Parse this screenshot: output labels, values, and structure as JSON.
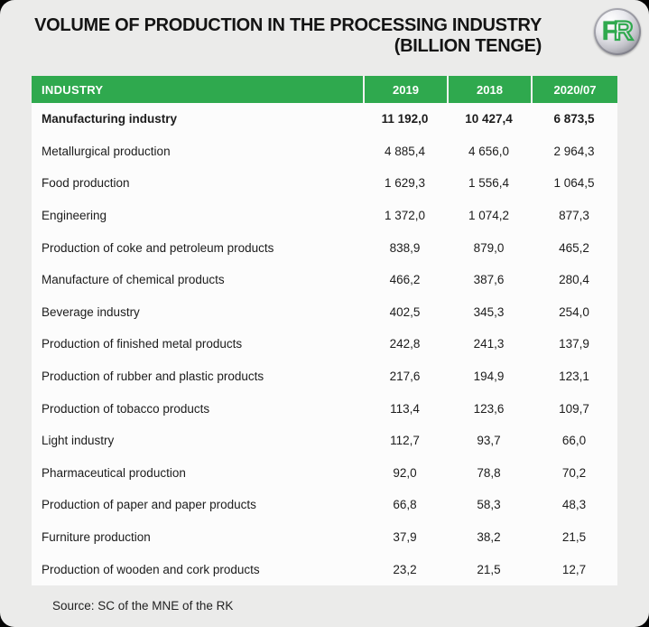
{
  "header": {
    "title_line1": "VOLUME OF PRODUCTION IN THE PROCESSING INDUSTRY",
    "title_line2": "(BILLION TENGE)",
    "logo": {
      "f": "F",
      "r": "R"
    }
  },
  "colors": {
    "accent_green": "#2fa94e",
    "card_background": "#ebebea",
    "table_background": "#fcfcfc",
    "header_text": "#ffffff",
    "body_text": "#1c1c1c",
    "outer_background": "#050505"
  },
  "table": {
    "columns": [
      "INDUSTRY",
      "2019",
      "2018",
      "2020/07"
    ],
    "rows": [
      {
        "industry": "Manufacturing industry",
        "v2019": "11 192,0",
        "v2018": "10 427,4",
        "v2020_07": "6 873,5",
        "bold": true
      },
      {
        "industry": "Metallurgical production",
        "v2019": "4 885,4",
        "v2018": "4 656,0",
        "v2020_07": "2 964,3",
        "bold": false
      },
      {
        "industry": "Food production",
        "v2019": "1 629,3",
        "v2018": "1 556,4",
        "v2020_07": "1 064,5",
        "bold": false
      },
      {
        "industry": "Engineering",
        "v2019": "1 372,0",
        "v2018": "1 074,2",
        "v2020_07": "877,3",
        "bold": false
      },
      {
        "industry": "Production of coke and petroleum products",
        "v2019": "838,9",
        "v2018": "879,0",
        "v2020_07": "465,2",
        "bold": false
      },
      {
        "industry": "Manufacture of chemical products",
        "v2019": "466,2",
        "v2018": "387,6",
        "v2020_07": "280,4",
        "bold": false
      },
      {
        "industry": "Beverage industry",
        "v2019": "402,5",
        "v2018": "345,3",
        "v2020_07": "254,0",
        "bold": false
      },
      {
        "industry": "Production of finished metal products",
        "v2019": "242,8",
        "v2018": "241,3",
        "v2020_07": "137,9",
        "bold": false
      },
      {
        "industry": "Production of rubber and plastic products",
        "v2019": "217,6",
        "v2018": "194,9",
        "v2020_07": "123,1",
        "bold": false
      },
      {
        "industry": "Production of tobacco products",
        "v2019": "113,4",
        "v2018": "123,6",
        "v2020_07": "109,7",
        "bold": false
      },
      {
        "industry": "Light industry",
        "v2019": "112,7",
        "v2018": "93,7",
        "v2020_07": "66,0",
        "bold": false
      },
      {
        "industry": "Pharmaceutical production",
        "v2019": "92,0",
        "v2018": "78,8",
        "v2020_07": "70,2",
        "bold": false
      },
      {
        "industry": "Production of paper and paper products",
        "v2019": "66,8",
        "v2018": "58,3",
        "v2020_07": "48,3",
        "bold": false
      },
      {
        "industry": "Furniture production",
        "v2019": "37,9",
        "v2018": "38,2",
        "v2020_07": "21,5",
        "bold": false
      },
      {
        "industry": "Production of wooden and cork products",
        "v2019": "23,2",
        "v2018": "21,5",
        "v2020_07": "12,7",
        "bold": false
      }
    ]
  },
  "footer": {
    "source": "Source: SC of the MNE of the RK"
  },
  "chart_data": {
    "type": "table",
    "title": "VOLUME OF PRODUCTION IN THE PROCESSING INDUSTRY (BILLION TENGE)",
    "columns": [
      "INDUSTRY",
      "2019",
      "2018",
      "2020/07"
    ],
    "units": "billion tenge",
    "decimal_separator": ",",
    "rows": [
      [
        "Manufacturing industry",
        11192.0,
        10427.4,
        6873.5
      ],
      [
        "Metallurgical production",
        4885.4,
        4656.0,
        2964.3
      ],
      [
        "Food production",
        1629.3,
        1556.4,
        1064.5
      ],
      [
        "Engineering",
        1372.0,
        1074.2,
        877.3
      ],
      [
        "Production of coke and petroleum products",
        838.9,
        879.0,
        465.2
      ],
      [
        "Manufacture of chemical products",
        466.2,
        387.6,
        280.4
      ],
      [
        "Beverage industry",
        402.5,
        345.3,
        254.0
      ],
      [
        "Production of finished metal products",
        242.8,
        241.3,
        137.9
      ],
      [
        "Production of rubber and plastic products",
        217.6,
        194.9,
        123.1
      ],
      [
        "Production of tobacco products",
        113.4,
        123.6,
        109.7
      ],
      [
        "Light industry",
        112.7,
        93.7,
        66.0
      ],
      [
        "Pharmaceutical production",
        92.0,
        78.8,
        70.2
      ],
      [
        "Production of paper and paper products",
        66.8,
        58.3,
        48.3
      ],
      [
        "Furniture production",
        37.9,
        38.2,
        21.5
      ],
      [
        "Production of wooden and cork products",
        23.2,
        21.5,
        12.7
      ]
    ],
    "source": "Source: SC of the MNE of the RK"
  }
}
